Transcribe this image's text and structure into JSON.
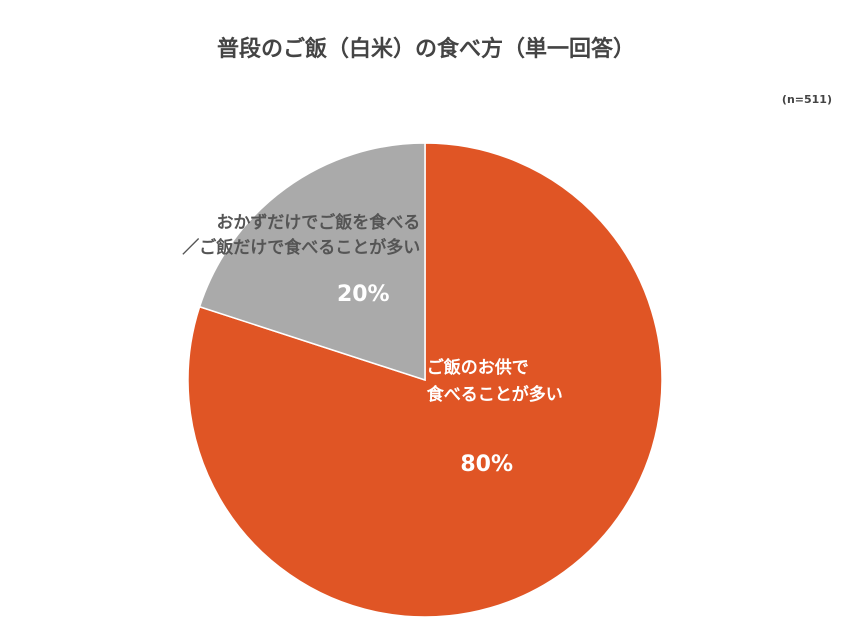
{
  "chart_data": {
    "type": "pie",
    "title": "普段のご飯（白米）の食べ方（単一回答）",
    "subtitle": "(n=511)",
    "categories": [
      [
        "ご飯のお供で",
        "食べることが多い"
      ],
      [
        "おかずだけでご飯を食べる",
        "／ご飯だけで食べることが多い"
      ]
    ],
    "values": [
      80,
      20
    ],
    "value_labels": [
      "80%",
      "20%"
    ],
    "colors": [
      "#e05525",
      "#aaaaaa"
    ]
  }
}
